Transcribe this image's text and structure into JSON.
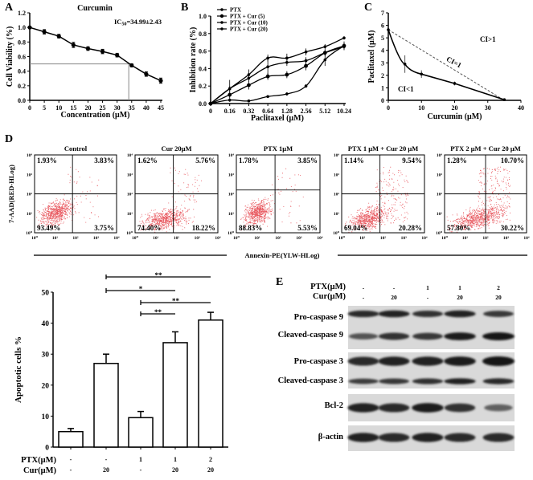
{
  "figure": {
    "panel_letters": {
      "A": "A",
      "B": "B",
      "C": "C",
      "D": "D",
      "E": "E"
    }
  },
  "chart_data": [
    {
      "id": "A",
      "type": "line",
      "title": "Curcumin",
      "annotation": "IC50=34.99±2.43",
      "annotation_main": "IC",
      "annotation_sub": "50",
      "annotation_rest": "=34.99±2.43",
      "xlabel": "Concentration (μM)",
      "ylabel": "Cell Viability (%)",
      "x": [
        0,
        5,
        10,
        15,
        20,
        25,
        30,
        35,
        40,
        45
      ],
      "y": [
        1.0,
        0.94,
        0.88,
        0.76,
        0.71,
        0.67,
        0.62,
        0.48,
        0.36,
        0.27
      ],
      "yerr": [
        0.0,
        0.03,
        0.025,
        0.035,
        0.025,
        0.03,
        0.025,
        0.02,
        0.03,
        0.035
      ],
      "xlim": [
        0,
        45
      ],
      "ylim": [
        0.0,
        1.2
      ],
      "xticks": [
        "0",
        "5",
        "10",
        "15",
        "20",
        "25",
        "30",
        "35",
        "40",
        "45"
      ],
      "yticks": [
        "0.0",
        "0.2",
        "0.4",
        "0.6",
        "0.8",
        "1.0",
        "1.2"
      ],
      "ic50_guide": {
        "x": 34,
        "y": 0.5
      }
    },
    {
      "id": "B",
      "type": "line",
      "title": "",
      "xlabel": "Paclitaxel (μM)",
      "ylabel": "Inhibition rate (%)",
      "categories": [
        "0",
        "0.16",
        "0.32",
        "0.64",
        "1.28",
        "2.56",
        "5.12",
        "10.24"
      ],
      "ylim": [
        0.0,
        1.0
      ],
      "yticks": [
        "0.0",
        "0.2",
        "0.4",
        "0.6",
        "0.8",
        "1.0"
      ],
      "legend_position": "top-left",
      "series": [
        {
          "name": "PTX",
          "values": [
            0.0,
            0.04,
            0.03,
            0.08,
            0.11,
            0.2,
            0.5,
            0.66
          ],
          "yerr": [
            0,
            0.02,
            0.01,
            0.01,
            0.02,
            0.02,
            0.07,
            0.05
          ]
        },
        {
          "name": "PTX + Cur (5)",
          "values": [
            0.0,
            0.1,
            0.21,
            0.31,
            0.33,
            0.43,
            0.58,
            0.66
          ],
          "yerr": [
            0,
            0.04,
            0.05,
            0.04,
            0.04,
            0.05,
            0.04,
            0.03
          ]
        },
        {
          "name": "PTX + Cur (10)",
          "values": [
            0.0,
            0.17,
            0.29,
            0.42,
            0.47,
            0.49,
            0.58,
            0.65
          ],
          "yerr": [
            0,
            0.03,
            0.04,
            0.09,
            0.04,
            0.04,
            0.03,
            0.03
          ]
        },
        {
          "name": "PTX + Cur (20)",
          "values": [
            0.0,
            0.17,
            0.33,
            0.52,
            0.52,
            0.59,
            0.65,
            0.75
          ],
          "yerr": [
            0,
            0.1,
            0.06,
            0.04,
            0.05,
            0.04,
            0.03,
            0.02
          ]
        }
      ]
    },
    {
      "id": "C",
      "type": "line",
      "title": "",
      "xlabel": "Curcumin (μM)",
      "ylabel": "Paclitaxel (μM)",
      "xlim": [
        0,
        40
      ],
      "ylim": [
        0,
        7
      ],
      "xticks": [
        "0",
        "10",
        "20",
        "30",
        "40"
      ],
      "yticks": [
        "0",
        "1",
        "2",
        "3",
        "4",
        "5",
        "6",
        "7"
      ],
      "isobologram": {
        "x": [
          0,
          5,
          10,
          20,
          35
        ],
        "y": [
          5.65,
          2.9,
          2.1,
          1.35,
          0.05
        ],
        "yerr": [
          0.1,
          0.7,
          0.3,
          0.15,
          0.0
        ]
      },
      "additivity_line": {
        "x": [
          0,
          35
        ],
        "y": [
          5.65,
          0.0
        ]
      },
      "annotations": {
        "above": "CI>1",
        "on_line": "CI=1",
        "below": "CI<1"
      }
    },
    {
      "id": "D",
      "type": "scatter",
      "xlabel": "Annexin-PE(YLW-HLog)",
      "ylabel": "7-AAD(RED-HLog)",
      "axis_ticks": [
        "10⁰",
        "10¹",
        "10²",
        "10³",
        "10⁴"
      ],
      "plots": [
        {
          "title": "Control",
          "UL": "1.93%",
          "UR": "3.83%",
          "LL": "93.49%",
          "LR": "3.75%",
          "gate": {
            "x": 1.85,
            "y": 2.0
          }
        },
        {
          "title": "Cur  20μM",
          "UL": "1.62%",
          "UR": "5.76%",
          "LL": "74.40%",
          "LR": "18.22%",
          "gate": {
            "x": 1.85,
            "y": 2.0
          }
        },
        {
          "title": "PTX  1μM",
          "UL": "1.78%",
          "UR": "3.85%",
          "LL": "88.83%",
          "LR": "5.53%",
          "gate": {
            "x": 1.85,
            "y": 2.2
          }
        },
        {
          "title": "PTX 1 μM + Cur 20 μM",
          "UL": "1.14%",
          "UR": "9.54%",
          "LL": "69.04%",
          "LR": "20.28%",
          "gate": {
            "x": 1.85,
            "y": 2.0
          }
        },
        {
          "title": "PTX 2 μM + Cur 20 μM",
          "UL": "1.28%",
          "UR": "10.70%",
          "LL": "57.80%",
          "LR": "30.22%",
          "gate": {
            "x": 2.0,
            "y": 2.0
          }
        }
      ]
    },
    {
      "id": "D-bar",
      "type": "bar",
      "title": "",
      "ylabel": "Apoptotic cells %",
      "ylim": [
        0,
        50
      ],
      "yticks": [
        "0",
        "10",
        "20",
        "30",
        "40",
        "50"
      ],
      "row_labels": [
        "PTX(μM)",
        "Cur(μM)"
      ],
      "categories_ptx": [
        "-",
        "-",
        "1",
        "1",
        "2"
      ],
      "categories_cur": [
        "-",
        "20",
        "-",
        "20",
        "20"
      ],
      "values": [
        5.0,
        27.0,
        9.5,
        33.7,
        41.0
      ],
      "yerr": [
        1.0,
        3.0,
        2.0,
        3.5,
        2.5
      ],
      "significance": [
        {
          "from": 1,
          "to": 4,
          "label": "**"
        },
        {
          "from": 1,
          "to": 3,
          "label": "*"
        },
        {
          "from": 2,
          "to": 4,
          "label": "**"
        },
        {
          "from": 2,
          "to": 3,
          "label": "**"
        }
      ]
    }
  ],
  "western_blot": {
    "letter": "E",
    "header_rows": [
      {
        "label": "PTX(μM)",
        "values": [
          "-",
          "-",
          "1",
          "1",
          "2"
        ]
      },
      {
        "label": "Cur(μM)",
        "values": [
          "-",
          "20",
          "-",
          "20",
          "20"
        ]
      }
    ],
    "bands": [
      {
        "label": "Pro-caspase 9",
        "intensity": [
          0.85,
          0.9,
          0.8,
          0.9,
          0.75
        ]
      },
      {
        "label": "Cleaved-caspase 9",
        "intensity": [
          0.55,
          0.8,
          0.75,
          0.95,
          1.0
        ]
      },
      {
        "label": "Pro-caspase 3",
        "intensity": [
          0.85,
          0.9,
          0.9,
          0.95,
          1.0
        ]
      },
      {
        "label": "Cleaved-caspase 3",
        "intensity": [
          0.7,
          0.75,
          0.8,
          0.9,
          0.85
        ]
      },
      {
        "label": "Bcl-2",
        "intensity": [
          0.9,
          0.85,
          0.95,
          0.8,
          0.45
        ]
      },
      {
        "label": "β-actin",
        "intensity": [
          0.9,
          0.85,
          0.9,
          0.85,
          0.85
        ]
      }
    ]
  }
}
